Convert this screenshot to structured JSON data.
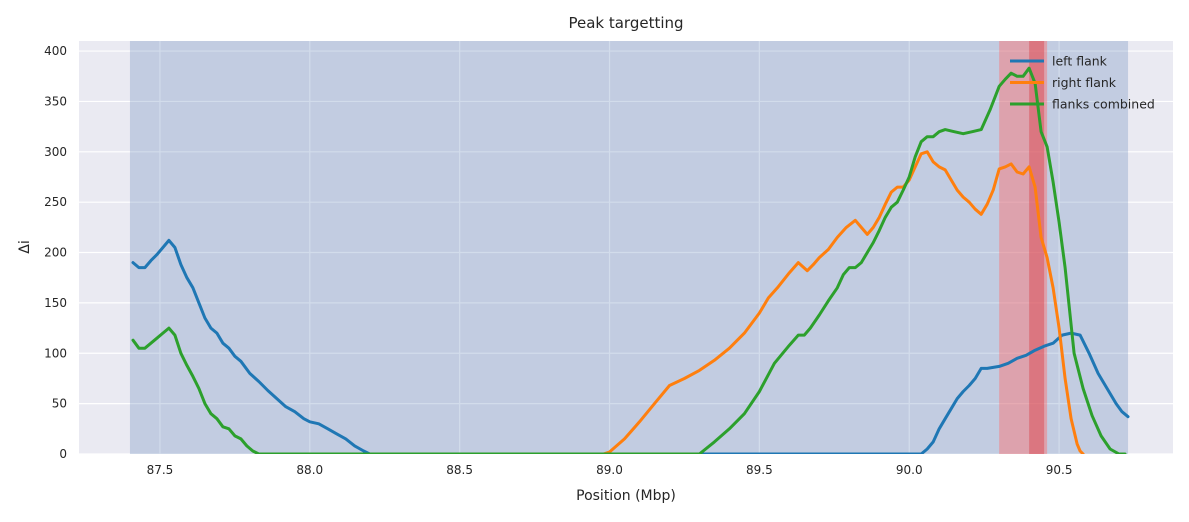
{
  "chart_data": {
    "type": "line",
    "title": "Peak targetting",
    "xlabel": "Position (Mbp)",
    "ylabel": "Δi",
    "xlim": [
      87.23,
      90.88
    ],
    "ylim": [
      0,
      410
    ],
    "xticks": [
      87.5,
      88.0,
      88.5,
      89.0,
      89.5,
      90.0,
      90.5
    ],
    "xtick_labels": [
      "87.5",
      "88.0",
      "88.5",
      "89.0",
      "89.5",
      "90.0",
      "90.5"
    ],
    "yticks": [
      0,
      50,
      100,
      150,
      200,
      250,
      300,
      350,
      400
    ],
    "ytick_labels": [
      "0",
      "50",
      "100",
      "150",
      "200",
      "250",
      "300",
      "350",
      "400"
    ],
    "grid": true,
    "legend_position": "top-right",
    "background_color": "#eaeaf2",
    "highlight_regions": [
      {
        "x0": 87.4,
        "x1": 90.73,
        "color": "#4c72b0",
        "opacity": 0.25
      },
      {
        "x0": 90.3,
        "x1": 90.46,
        "color": "#ff6f6f",
        "opacity": 0.45
      },
      {
        "x0": 90.4,
        "x1": 90.45,
        "color": "#d9404a",
        "opacity": 0.45
      }
    ],
    "series": [
      {
        "name": "left flank",
        "color": "#1f77b4",
        "x": [
          87.41,
          87.43,
          87.45,
          87.47,
          87.49,
          87.51,
          87.53,
          87.55,
          87.57,
          87.59,
          87.61,
          87.63,
          87.65,
          87.67,
          87.69,
          87.71,
          87.73,
          87.75,
          87.77,
          87.8,
          87.83,
          87.86,
          87.89,
          87.92,
          87.95,
          87.98,
          88.0,
          88.03,
          88.06,
          88.09,
          88.12,
          88.15,
          88.18,
          88.2,
          90.04,
          90.06,
          90.08,
          90.1,
          90.12,
          90.14,
          90.16,
          90.18,
          90.2,
          90.22,
          90.24,
          90.26,
          90.28,
          90.3,
          90.33,
          90.36,
          90.39,
          90.42,
          90.45,
          90.48,
          90.51,
          90.54,
          90.57,
          90.6,
          90.63,
          90.66,
          90.69,
          90.71,
          90.73
        ],
        "values": [
          190,
          185,
          185,
          192,
          198,
          205,
          212,
          205,
          188,
          175,
          165,
          150,
          135,
          125,
          120,
          110,
          105,
          97,
          92,
          80,
          72,
          63,
          55,
          47,
          42,
          35,
          32,
          30,
          25,
          20,
          15,
          8,
          3,
          0,
          0,
          5,
          12,
          25,
          35,
          45,
          55,
          62,
          68,
          75,
          85,
          85,
          86,
          87,
          90,
          95,
          98,
          103,
          107,
          110,
          118,
          120,
          118,
          100,
          80,
          65,
          50,
          42,
          37
        ]
      },
      {
        "name": "right flank",
        "color": "#ff7f0e",
        "x": [
          88.98,
          89.0,
          89.05,
          89.1,
          89.15,
          89.2,
          89.25,
          89.3,
          89.35,
          89.4,
          89.45,
          89.5,
          89.53,
          89.56,
          89.6,
          89.63,
          89.66,
          89.68,
          89.7,
          89.73,
          89.76,
          89.79,
          89.82,
          89.84,
          89.86,
          89.88,
          89.9,
          89.92,
          89.94,
          89.96,
          89.98,
          90.0,
          90.02,
          90.04,
          90.06,
          90.08,
          90.1,
          90.12,
          90.14,
          90.16,
          90.18,
          90.2,
          90.22,
          90.24,
          90.26,
          90.28,
          90.3,
          90.32,
          90.34,
          90.36,
          90.38,
          90.4,
          90.42,
          90.44,
          90.46,
          90.48,
          90.5,
          90.52,
          90.54,
          90.56,
          90.57,
          90.58
        ],
        "values": [
          0,
          2,
          15,
          32,
          50,
          68,
          75,
          83,
          93,
          105,
          120,
          140,
          155,
          165,
          180,
          190,
          182,
          188,
          195,
          203,
          215,
          225,
          232,
          225,
          218,
          225,
          235,
          248,
          260,
          265,
          265,
          272,
          285,
          298,
          300,
          290,
          285,
          282,
          272,
          262,
          255,
          250,
          243,
          238,
          248,
          262,
          283,
          285,
          288,
          280,
          278,
          285,
          265,
          215,
          195,
          165,
          125,
          75,
          35,
          10,
          3,
          0
        ]
      },
      {
        "name": "flanks combined",
        "color": "#2ca02c",
        "x": [
          87.41,
          87.43,
          87.45,
          87.47,
          87.49,
          87.51,
          87.53,
          87.55,
          87.57,
          87.59,
          87.61,
          87.63,
          87.65,
          87.67,
          87.69,
          87.71,
          87.73,
          87.75,
          87.77,
          87.79,
          87.81,
          87.83,
          89.3,
          89.35,
          89.4,
          89.45,
          89.5,
          89.55,
          89.6,
          89.63,
          89.65,
          89.67,
          89.7,
          89.73,
          89.76,
          89.78,
          89.8,
          89.82,
          89.84,
          89.86,
          89.88,
          89.9,
          89.92,
          89.94,
          89.96,
          89.98,
          90.0,
          90.02,
          90.04,
          90.06,
          90.08,
          90.1,
          90.12,
          90.15,
          90.18,
          90.21,
          90.24,
          90.27,
          90.3,
          90.32,
          90.34,
          90.36,
          90.38,
          90.4,
          90.42,
          90.44,
          90.46,
          90.48,
          90.5,
          90.52,
          90.55,
          90.58,
          90.61,
          90.64,
          90.67,
          90.7,
          90.72
        ],
        "values": [
          113,
          105,
          105,
          110,
          115,
          120,
          125,
          118,
          100,
          88,
          77,
          65,
          50,
          40,
          35,
          27,
          25,
          18,
          15,
          8,
          3,
          0,
          0,
          12,
          25,
          40,
          62,
          90,
          108,
          118,
          118,
          125,
          138,
          152,
          165,
          178,
          185,
          185,
          190,
          200,
          210,
          222,
          235,
          245,
          250,
          262,
          275,
          295,
          310,
          315,
          315,
          320,
          322,
          320,
          318,
          320,
          322,
          342,
          365,
          372,
          378,
          375,
          375,
          383,
          368,
          320,
          305,
          270,
          230,
          185,
          100,
          65,
          38,
          18,
          5,
          0,
          0
        ]
      }
    ]
  }
}
